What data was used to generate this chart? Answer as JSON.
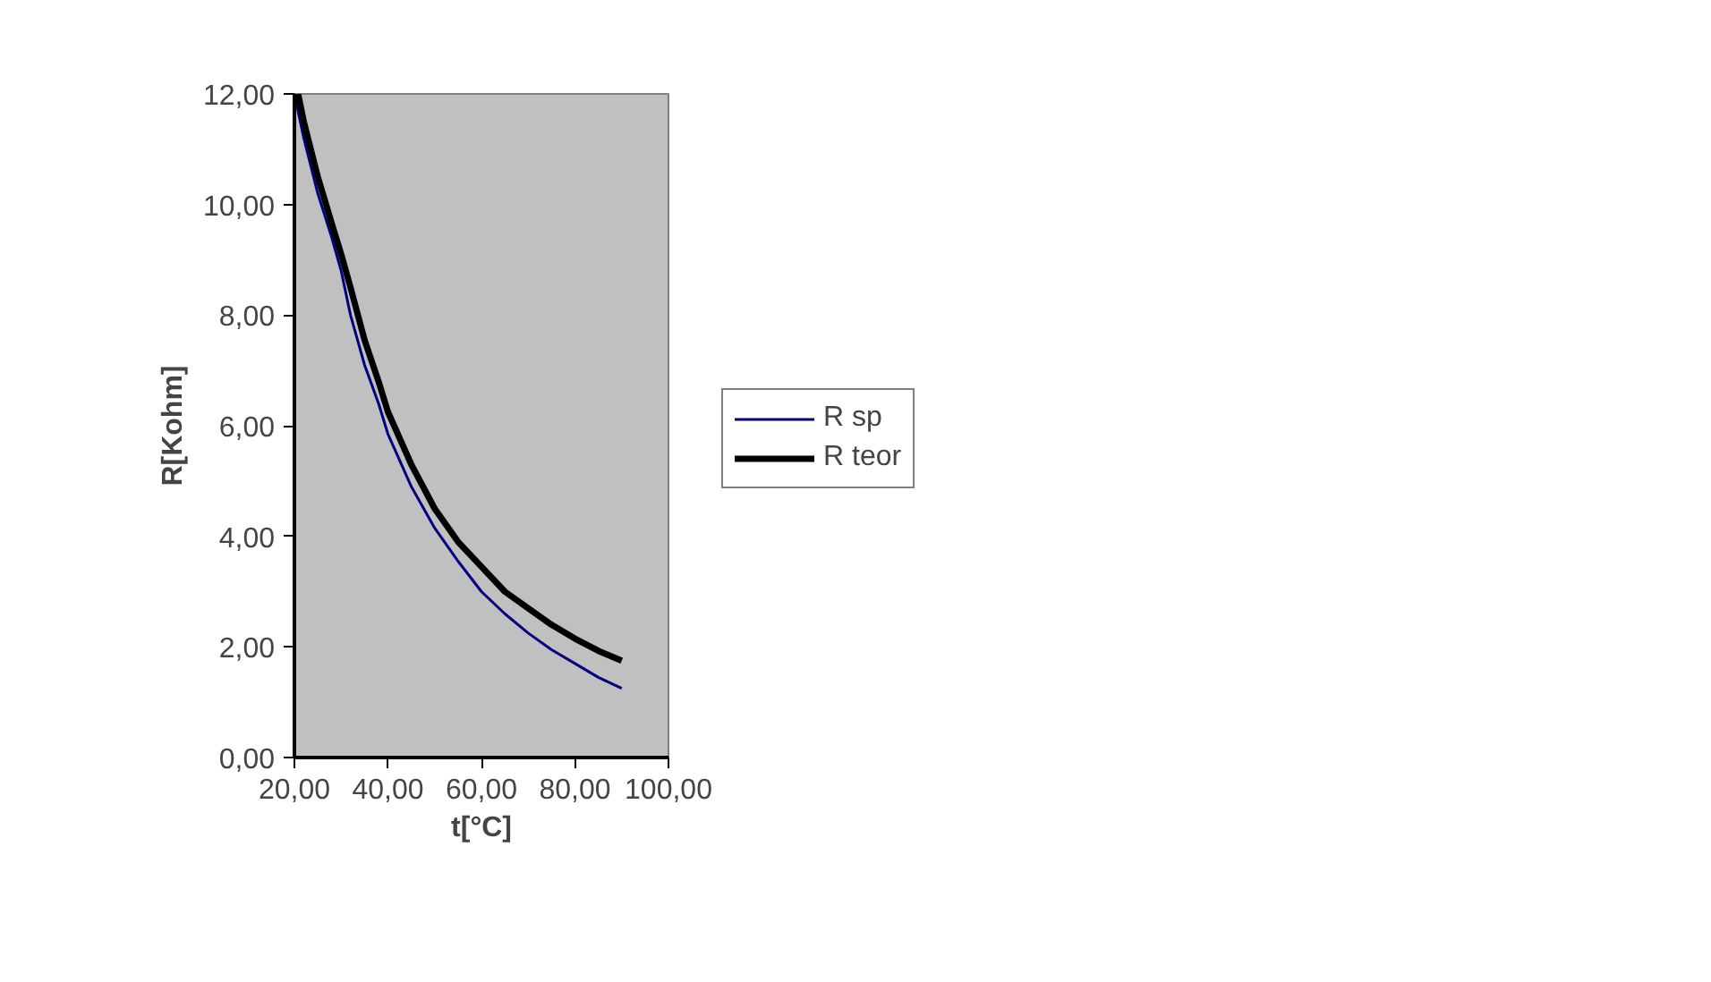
{
  "chart_data": {
    "type": "line",
    "xlabel": "t[°C]",
    "ylabel": "R[Kohm]",
    "series": [
      {
        "name": "R sp",
        "color": "#000080",
        "x": [
          20,
          22,
          25,
          28,
          30,
          32,
          35,
          38,
          40,
          45,
          50,
          55,
          60,
          65,
          70,
          75,
          80,
          85,
          90
        ],
        "values": [
          12.0,
          11.2,
          10.2,
          9.4,
          8.8,
          8.0,
          7.1,
          6.4,
          5.85,
          4.9,
          4.15,
          3.55,
          3.0,
          2.6,
          2.25,
          1.95,
          1.7,
          1.45,
          1.25
        ]
      },
      {
        "name": "R teor",
        "color": "#000000",
        "x": [
          20.8,
          22,
          25,
          28,
          30,
          32,
          35,
          38,
          40,
          45,
          50,
          55,
          60,
          65,
          70,
          75,
          80,
          85,
          90
        ],
        "values": [
          12.0,
          11.5,
          10.5,
          9.65,
          9.1,
          8.5,
          7.55,
          6.8,
          6.25,
          5.3,
          4.5,
          3.9,
          3.45,
          3.0,
          2.7,
          2.4,
          2.15,
          1.93,
          1.75
        ]
      }
    ],
    "xlim": [
      20,
      100
    ],
    "ylim": [
      0,
      12
    ],
    "xticks": [
      {
        "value": 20,
        "label": "20,00"
      },
      {
        "value": 40,
        "label": "40,00"
      },
      {
        "value": 60,
        "label": "60,00"
      },
      {
        "value": 80,
        "label": "80,00"
      },
      {
        "value": 100,
        "label": "100,00"
      }
    ],
    "yticks": [
      {
        "value": 0,
        "label": "0,00"
      },
      {
        "value": 2,
        "label": "2,00"
      },
      {
        "value": 4,
        "label": "4,00"
      },
      {
        "value": 6,
        "label": "6,00"
      },
      {
        "value": 8,
        "label": "8,00"
      },
      {
        "value": 10,
        "label": "10,00"
      },
      {
        "value": 12,
        "label": "12,00"
      }
    ],
    "grid": false,
    "legend": "right",
    "marker": "none",
    "line_style": "solid"
  }
}
